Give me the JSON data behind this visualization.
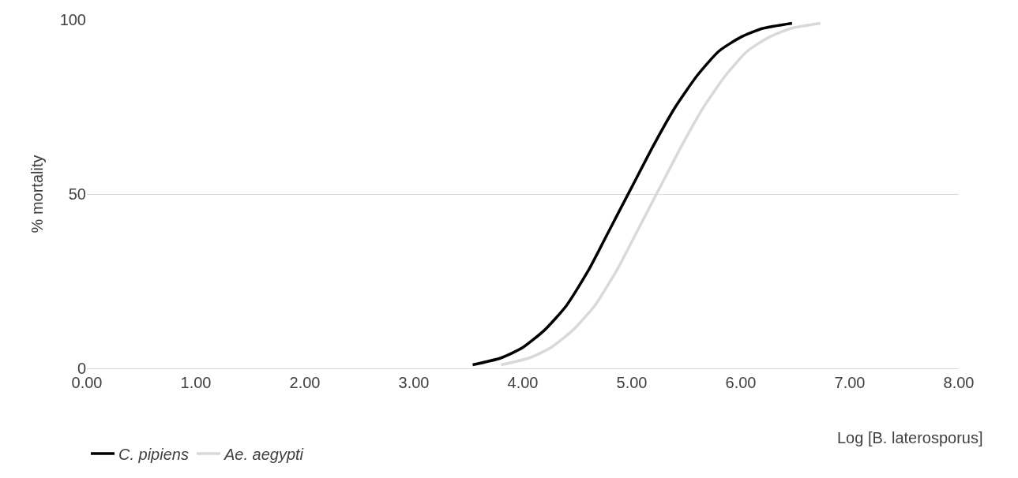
{
  "chart_data": {
    "type": "line",
    "xlabel": "Log [B. laterosporus]",
    "ylabel": "% mortality",
    "series": [
      {
        "name": "C. pipiens",
        "color": "#000000",
        "x": [
          3.54,
          3.8,
          4.0,
          4.2,
          4.4,
          4.6,
          4.8,
          5.0,
          5.2,
          5.4,
          5.6,
          5.8,
          6.0,
          6.2,
          6.47
        ],
        "values": [
          1,
          3,
          6,
          11,
          18,
          28,
          40,
          52,
          64,
          75,
          84,
          91,
          95,
          97.5,
          99
        ]
      },
      {
        "name": "Ae. aegypti",
        "color": "#d9d9d9",
        "x": [
          3.8,
          4.06,
          4.26,
          4.46,
          4.66,
          4.86,
          5.06,
          5.26,
          5.46,
          5.66,
          5.86,
          6.06,
          6.26,
          6.46,
          6.73
        ],
        "values": [
          1,
          3,
          6,
          11,
          18,
          28,
          40,
          52,
          64,
          75,
          84,
          91,
          95,
          97.5,
          99
        ]
      }
    ],
    "xlim": [
      0,
      8
    ],
    "ylim": [
      0,
      100
    ],
    "xticks": [
      {
        "value": 0,
        "label": "0.00"
      },
      {
        "value": 1,
        "label": "1.00"
      },
      {
        "value": 2,
        "label": "2.00"
      },
      {
        "value": 3,
        "label": "3.00"
      },
      {
        "value": 4,
        "label": "4.00"
      },
      {
        "value": 5,
        "label": "5.00"
      },
      {
        "value": 6,
        "label": "6.00"
      },
      {
        "value": 7,
        "label": "7.00"
      },
      {
        "value": 8,
        "label": "8.00"
      }
    ],
    "yticks": [
      0,
      50,
      100
    ],
    "grid": "y",
    "legend": "bottom left",
    "marker": "none",
    "line_style": "solid"
  }
}
